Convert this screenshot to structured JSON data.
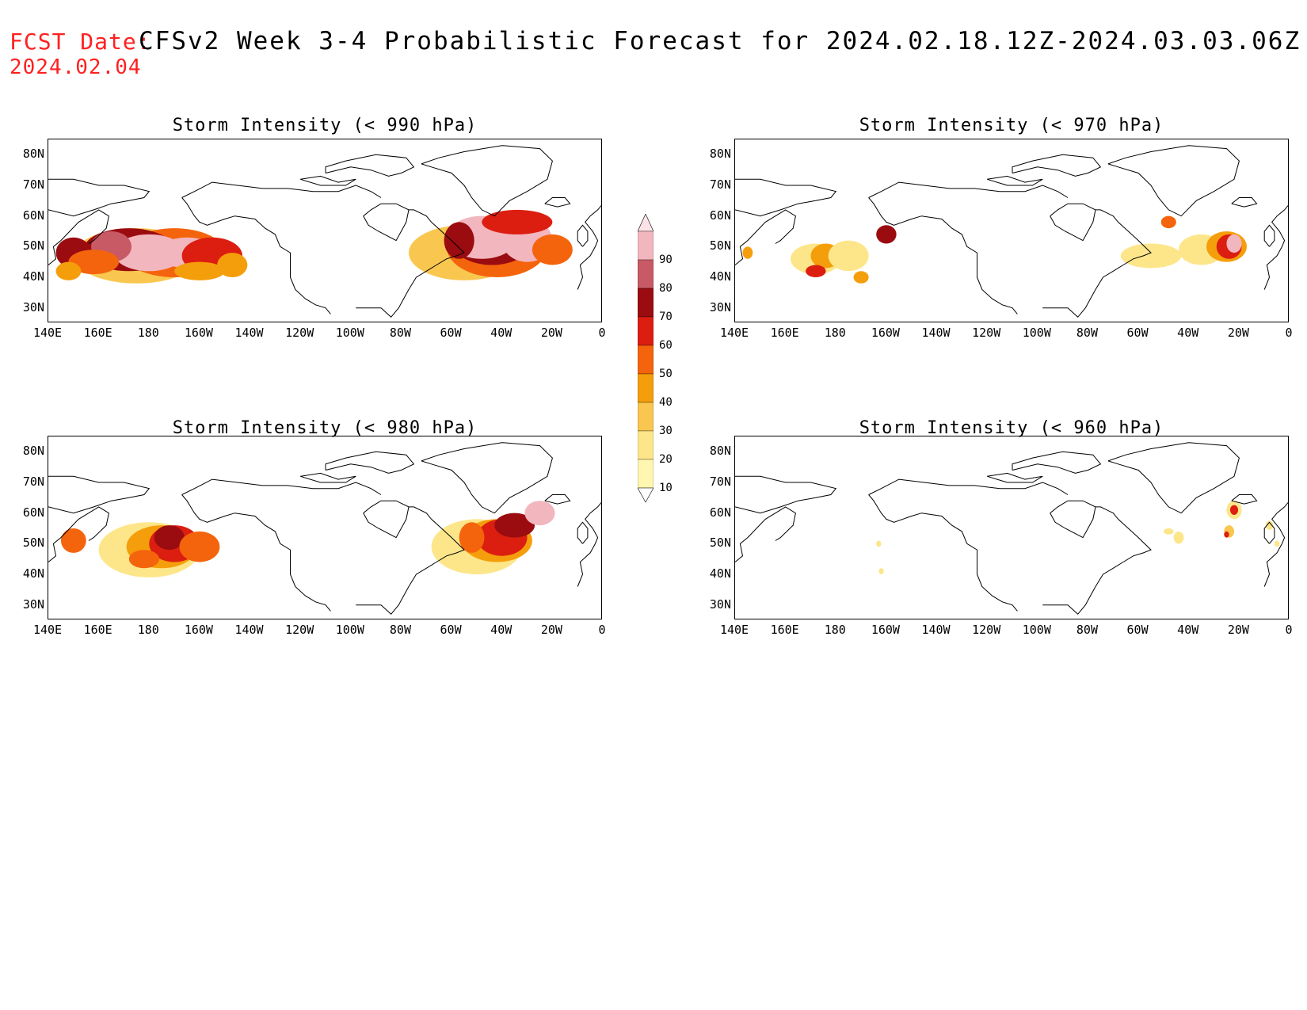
{
  "header": {
    "fcst_label": "FCST Date:",
    "fcst_date": "2024.02.04",
    "title": "CFSv2 Week 3-4 Probabilistic Forecast for 2024.02.18.12Z-2024.03.03.06Z"
  },
  "lat_labels": [
    "80N",
    "70N",
    "60N",
    "50N",
    "40N",
    "30N"
  ],
  "lon_labels": [
    "140E",
    "160E",
    "180",
    "160W",
    "140W",
    "120W",
    "100W",
    "80W",
    "60W",
    "40W",
    "20W",
    "0"
  ],
  "colorbar": {
    "levels": [
      "10",
      "20",
      "30",
      "40",
      "50",
      "60",
      "70",
      "80",
      "90"
    ],
    "colors": [
      "#fff7b0",
      "#fde68a",
      "#f9c74f",
      "#f59e0b",
      "#f4640c",
      "#dc1e10",
      "#9a0c10",
      "#c85a66",
      "#f2b6bf",
      "#fde3e7"
    ]
  },
  "panels": [
    {
      "id": "p990",
      "title": "Storm Intensity (< 990 hPa)"
    },
    {
      "id": "p970",
      "title": "Storm Intensity (< 970 hPa)"
    },
    {
      "id": "p980",
      "title": "Storm Intensity (< 980 hPa)"
    },
    {
      "id": "p960",
      "title": "Storm Intensity (< 960 hPa)"
    }
  ]
}
